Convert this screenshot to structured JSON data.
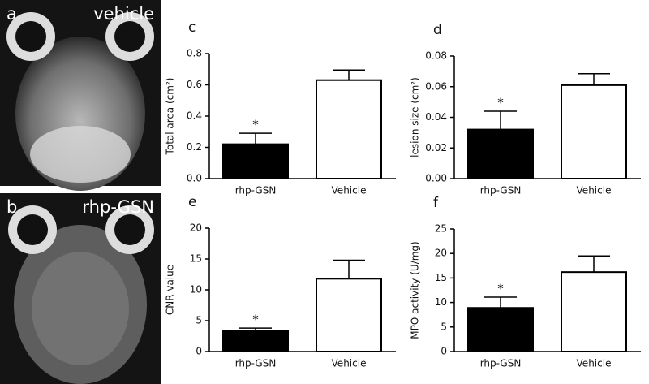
{
  "images": [
    {
      "panel": "a",
      "label": "vehicle"
    },
    {
      "panel": "b",
      "label": "rhp-GSN"
    }
  ],
  "chart_data": [
    {
      "type": "bar",
      "panel": "c",
      "ylabel": "Total area (cm²)",
      "categories": [
        "rhp-GSN",
        "Vehicle"
      ],
      "values": [
        0.22,
        0.63
      ],
      "errors": [
        0.07,
        0.065
      ],
      "colors": [
        "#000000",
        "#ffffff"
      ],
      "significance": [
        "*",
        null
      ],
      "ylim": [
        0,
        0.8
      ],
      "yticks": [
        {
          "value": 0,
          "label": "0.0"
        },
        0.2,
        0.4,
        0.6,
        0.8
      ]
    },
    {
      "type": "bar",
      "panel": "d",
      "ylabel": "lesion size (cm²)",
      "categories": [
        "rhp-GSN",
        "Vehicle"
      ],
      "values": [
        0.032,
        0.061
      ],
      "errors": [
        0.012,
        0.0075
      ],
      "colors": [
        "#000000",
        "#ffffff"
      ],
      "significance": [
        "*",
        null
      ],
      "ylim": [
        0,
        0.08
      ],
      "yticks": [
        {
          "value": 0,
          "label": "0.00"
        },
        0.02,
        0.04,
        0.06,
        0.08
      ]
    },
    {
      "type": "bar",
      "panel": "e",
      "ylabel": "CNR value",
      "categories": [
        "rhp-GSN",
        "Vehicle"
      ],
      "values": [
        3.3,
        11.8
      ],
      "errors": [
        0.5,
        3.0
      ],
      "colors": [
        "#000000",
        "#ffffff"
      ],
      "significance": [
        "*",
        null
      ],
      "ylim": [
        0,
        20
      ],
      "yticks": [
        0,
        5,
        10,
        15,
        20
      ]
    },
    {
      "type": "bar",
      "panel": "f",
      "ylabel": "MPO activity (U/mg)",
      "categories": [
        "rhp-GSN",
        "Vehicle"
      ],
      "values": [
        8.9,
        16.2
      ],
      "errors": [
        2.2,
        3.3
      ],
      "colors": [
        "#000000",
        "#ffffff"
      ],
      "significance": [
        "*",
        null
      ],
      "ylim": [
        0,
        25
      ],
      "yticks": [
        0,
        5,
        10,
        15,
        20,
        25
      ]
    }
  ]
}
